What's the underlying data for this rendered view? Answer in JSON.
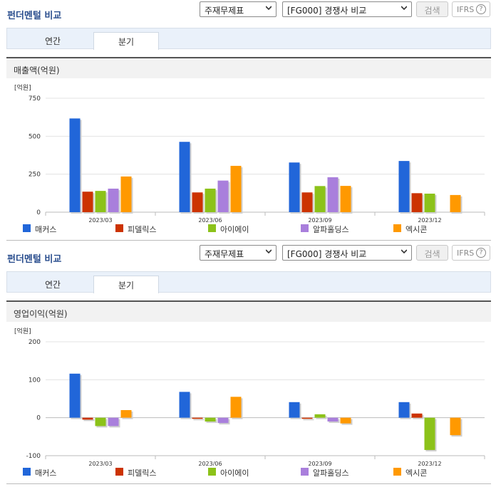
{
  "panels": [
    {
      "title": "펀더멘털 비교",
      "select1": "주재무제표",
      "select2": "[FG000] 경쟁사 비교",
      "search_label": "검색",
      "ifrs_label": "IFRS",
      "tabs": [
        {
          "label": "연간"
        },
        {
          "label": "분기"
        }
      ],
      "active_tab": "분기",
      "chart_title": "매출액(억원)"
    },
    {
      "title": "펀더멘털 비교",
      "select1": "주재무제표",
      "select2": "[FG000] 경쟁사 비교",
      "search_label": "검색",
      "ifrs_label": "IFRS",
      "tabs": [
        {
          "label": "연간"
        },
        {
          "label": "분기"
        }
      ],
      "active_tab": "분기",
      "chart_title": "영업이익(억원)"
    }
  ],
  "chart_data": [
    {
      "type": "bar",
      "title": "매출액(억원)",
      "unit_label": "[억원]",
      "categories": [
        "2023/03",
        "2023/06",
        "2023/09",
        "2023/12"
      ],
      "ylim": [
        0,
        750
      ],
      "yticks": [
        0,
        250,
        500,
        750
      ],
      "grid": true,
      "legend_position": "bottom",
      "series": [
        {
          "name": "매커스",
          "color": "#2166d9",
          "values": [
            617,
            463,
            327,
            337
          ]
        },
        {
          "name": "피델릭스",
          "color": "#cc3300",
          "values": [
            135,
            130,
            130,
            125
          ]
        },
        {
          "name": "아이에이",
          "color": "#8cc21a",
          "values": [
            140,
            155,
            172,
            122
          ]
        },
        {
          "name": "알파홀딩스",
          "color": "#a97fdc",
          "values": [
            155,
            208,
            230,
            null
          ]
        },
        {
          "name": "엑시콘",
          "color": "#ff9900",
          "values": [
            235,
            305,
            173,
            113
          ]
        }
      ]
    },
    {
      "type": "bar",
      "title": "영업이익(억원)",
      "unit_label": "[억원]",
      "categories": [
        "2023/03",
        "2023/06",
        "2023/09",
        "2023/12"
      ],
      "ylim": [
        -100,
        200
      ],
      "yticks": [
        -100,
        0,
        100,
        200
      ],
      "grid": true,
      "legend_position": "bottom",
      "series": [
        {
          "name": "매커스",
          "color": "#2166d9",
          "values": [
            116,
            68,
            41,
            41
          ]
        },
        {
          "name": "피델릭스",
          "color": "#cc3300",
          "values": [
            -5,
            -3,
            -3,
            11
          ]
        },
        {
          "name": "아이에이",
          "color": "#8cc21a",
          "values": [
            -22,
            -10,
            9,
            -85
          ]
        },
        {
          "name": "알파홀딩스",
          "color": "#a97fdc",
          "values": [
            -22,
            -14,
            -10,
            null
          ]
        },
        {
          "name": "엑시콘",
          "color": "#ff9900",
          "values": [
            20,
            55,
            -15,
            -46
          ]
        }
      ]
    }
  ]
}
